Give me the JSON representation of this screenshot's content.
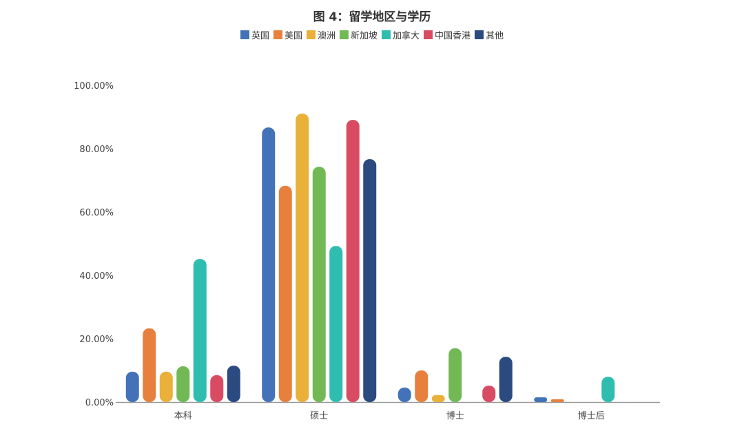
{
  "chart_data": {
    "type": "bar",
    "title": "图 4：留学地区与学历",
    "categories": [
      "本科",
      "硕士",
      "博士",
      "博士后"
    ],
    "series": [
      {
        "name": "英国",
        "color": "#4472b8",
        "values": [
          9.6,
          86.7,
          4.6,
          1.5
        ]
      },
      {
        "name": "美国",
        "color": "#e8803d",
        "values": [
          23.3,
          68.3,
          10.0,
          0.9
        ]
      },
      {
        "name": "澳洲",
        "color": "#e9b03a",
        "values": [
          9.6,
          91.1,
          2.2,
          0
        ]
      },
      {
        "name": "新加坡",
        "color": "#72b956",
        "values": [
          11.3,
          74.3,
          17.0,
          0
        ]
      },
      {
        "name": "加拿大",
        "color": "#2fbdb0",
        "values": [
          45.2,
          49.3,
          0,
          8.0
        ]
      },
      {
        "name": "中国香港",
        "color": "#d94b63",
        "values": [
          8.5,
          89.1,
          5.2,
          0
        ]
      },
      {
        "name": "其他",
        "color": "#2a4a80",
        "values": [
          11.5,
          76.7,
          14.3,
          0
        ]
      }
    ],
    "yticks": [
      "0.00%",
      "20.00%",
      "40.00%",
      "60.00%",
      "80.00%",
      "100.00%"
    ],
    "ylim": [
      0,
      100
    ],
    "xlabel": "",
    "ylabel": "",
    "grid": false,
    "legend_position": "top"
  }
}
